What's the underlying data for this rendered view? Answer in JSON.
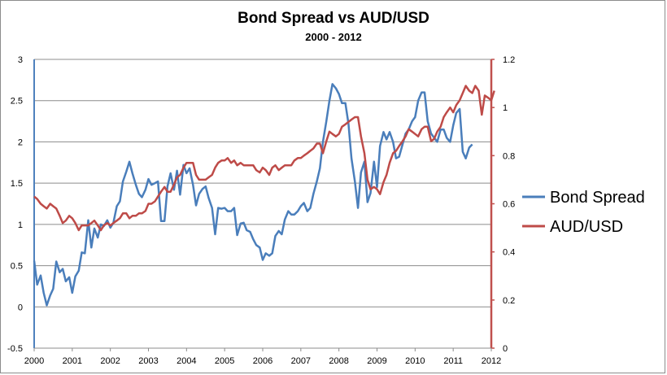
{
  "chart_data": {
    "type": "line",
    "title": "Bond Spread vs AUD/USD",
    "subtitle": "2000 - 2012",
    "xlabel": "",
    "ylabel": "",
    "x_tick_labels": [
      "2000",
      "2001",
      "2002",
      "2003",
      "2004",
      "2005",
      "2006",
      "2007",
      "2008",
      "2009",
      "2010",
      "2011",
      "2012"
    ],
    "xlim": [
      2000,
      2012
    ],
    "y_left": {
      "lim": [
        -0.5,
        3
      ],
      "ticks": [
        -0.5,
        0,
        0.5,
        1,
        1.5,
        2,
        2.5,
        3
      ],
      "tick_labels": [
        "-0.5",
        "0",
        "0.5",
        "1",
        "1.5",
        "2",
        "2.5",
        "3"
      ]
    },
    "y_right": {
      "lim": [
        0,
        1.2
      ],
      "ticks": [
        0,
        0.2,
        0.4,
        0.6,
        0.8,
        1,
        1.2
      ],
      "tick_labels": [
        "0",
        "0.2",
        "0.4",
        "0.6",
        "0.8",
        "1",
        "1.2"
      ]
    },
    "grid": true,
    "legend_position": "right",
    "series": [
      {
        "name": "Bond Spread",
        "axis": "left",
        "color": "#4a7ebb",
        "points": [
          [
            2000.0,
            0.56
          ],
          [
            2000.08,
            0.27
          ],
          [
            2000.17,
            0.38
          ],
          [
            2000.25,
            0.17
          ],
          [
            2000.33,
            0.02
          ],
          [
            2000.42,
            0.14
          ],
          [
            2000.5,
            0.22
          ],
          [
            2000.58,
            0.55
          ],
          [
            2000.67,
            0.42
          ],
          [
            2000.75,
            0.46
          ],
          [
            2000.83,
            0.31
          ],
          [
            2000.92,
            0.36
          ],
          [
            2001.0,
            0.17
          ],
          [
            2001.08,
            0.37
          ],
          [
            2001.17,
            0.44
          ],
          [
            2001.25,
            0.66
          ],
          [
            2001.33,
            0.65
          ],
          [
            2001.42,
            1.05
          ],
          [
            2001.5,
            0.72
          ],
          [
            2001.58,
            0.95
          ],
          [
            2001.67,
            0.84
          ],
          [
            2001.75,
            1.0
          ],
          [
            2001.83,
            0.98
          ],
          [
            2001.92,
            1.05
          ],
          [
            2002.0,
            0.96
          ],
          [
            2002.08,
            1.02
          ],
          [
            2002.17,
            1.22
          ],
          [
            2002.25,
            1.28
          ],
          [
            2002.33,
            1.52
          ],
          [
            2002.42,
            1.64
          ],
          [
            2002.5,
            1.76
          ],
          [
            2002.58,
            1.62
          ],
          [
            2002.67,
            1.48
          ],
          [
            2002.75,
            1.37
          ],
          [
            2002.83,
            1.33
          ],
          [
            2002.92,
            1.42
          ],
          [
            2003.0,
            1.55
          ],
          [
            2003.08,
            1.48
          ],
          [
            2003.17,
            1.5
          ],
          [
            2003.25,
            1.52
          ],
          [
            2003.33,
            1.04
          ],
          [
            2003.42,
            1.04
          ],
          [
            2003.5,
            1.46
          ],
          [
            2003.58,
            1.62
          ],
          [
            2003.67,
            1.42
          ],
          [
            2003.75,
            1.65
          ],
          [
            2003.83,
            1.36
          ],
          [
            2003.92,
            1.72
          ],
          [
            2004.0,
            1.62
          ],
          [
            2004.08,
            1.68
          ],
          [
            2004.17,
            1.48
          ],
          [
            2004.25,
            1.23
          ],
          [
            2004.33,
            1.37
          ],
          [
            2004.42,
            1.43
          ],
          [
            2004.5,
            1.46
          ],
          [
            2004.58,
            1.32
          ],
          [
            2004.67,
            1.2
          ],
          [
            2004.75,
            0.88
          ],
          [
            2004.83,
            1.2
          ],
          [
            2004.92,
            1.19
          ],
          [
            2005.0,
            1.2
          ],
          [
            2005.08,
            1.16
          ],
          [
            2005.17,
            1.16
          ],
          [
            2005.25,
            1.2
          ],
          [
            2005.33,
            0.87
          ],
          [
            2005.42,
            1.01
          ],
          [
            2005.5,
            1.02
          ],
          [
            2005.58,
            0.93
          ],
          [
            2005.67,
            0.91
          ],
          [
            2005.75,
            0.82
          ],
          [
            2005.83,
            0.75
          ],
          [
            2005.92,
            0.72
          ],
          [
            2006.0,
            0.57
          ],
          [
            2006.08,
            0.65
          ],
          [
            2006.17,
            0.62
          ],
          [
            2006.25,
            0.65
          ],
          [
            2006.33,
            0.86
          ],
          [
            2006.42,
            0.92
          ],
          [
            2006.5,
            0.88
          ],
          [
            2006.58,
            1.06
          ],
          [
            2006.67,
            1.16
          ],
          [
            2006.75,
            1.12
          ],
          [
            2006.83,
            1.12
          ],
          [
            2006.92,
            1.16
          ],
          [
            2007.0,
            1.22
          ],
          [
            2007.08,
            1.26
          ],
          [
            2007.17,
            1.16
          ],
          [
            2007.25,
            1.2
          ],
          [
            2007.33,
            1.37
          ],
          [
            2007.42,
            1.52
          ],
          [
            2007.5,
            1.68
          ],
          [
            2007.58,
            2.0
          ],
          [
            2007.67,
            2.25
          ],
          [
            2007.75,
            2.5
          ],
          [
            2007.83,
            2.7
          ],
          [
            2007.92,
            2.65
          ],
          [
            2008.0,
            2.58
          ],
          [
            2008.08,
            2.47
          ],
          [
            2008.17,
            2.47
          ],
          [
            2008.25,
            2.22
          ],
          [
            2008.33,
            1.8
          ],
          [
            2008.42,
            1.52
          ],
          [
            2008.5,
            1.2
          ],
          [
            2008.58,
            1.63
          ],
          [
            2008.67,
            1.76
          ],
          [
            2008.75,
            1.27
          ],
          [
            2008.83,
            1.38
          ],
          [
            2008.92,
            1.76
          ],
          [
            2009.0,
            1.45
          ],
          [
            2009.08,
            1.95
          ],
          [
            2009.17,
            2.12
          ],
          [
            2009.25,
            2.03
          ],
          [
            2009.33,
            2.12
          ],
          [
            2009.42,
            2.0
          ],
          [
            2009.5,
            1.8
          ],
          [
            2009.58,
            1.82
          ],
          [
            2009.67,
            1.97
          ],
          [
            2009.75,
            2.1
          ],
          [
            2009.83,
            2.15
          ],
          [
            2009.92,
            2.25
          ],
          [
            2010.0,
            2.3
          ],
          [
            2010.08,
            2.5
          ],
          [
            2010.17,
            2.6
          ],
          [
            2010.25,
            2.6
          ],
          [
            2010.33,
            2.25
          ],
          [
            2010.42,
            2.1
          ],
          [
            2010.5,
            2.05
          ],
          [
            2010.58,
            2.0
          ],
          [
            2010.67,
            2.15
          ],
          [
            2010.75,
            2.15
          ],
          [
            2010.83,
            2.05
          ],
          [
            2010.92,
            2.0
          ],
          [
            2011.0,
            2.2
          ],
          [
            2011.08,
            2.35
          ],
          [
            2011.17,
            2.4
          ],
          [
            2011.25,
            1.88
          ],
          [
            2011.33,
            1.8
          ],
          [
            2011.42,
            1.93
          ],
          [
            2011.5,
            1.97
          ]
        ]
      },
      {
        "name": "AUD/USD",
        "axis": "right",
        "color": "#be4b48",
        "points": [
          [
            2000.0,
            0.63
          ],
          [
            2000.08,
            0.62
          ],
          [
            2000.17,
            0.6
          ],
          [
            2000.25,
            0.59
          ],
          [
            2000.33,
            0.58
          ],
          [
            2000.42,
            0.6
          ],
          [
            2000.5,
            0.59
          ],
          [
            2000.58,
            0.58
          ],
          [
            2000.67,
            0.55
          ],
          [
            2000.75,
            0.52
          ],
          [
            2000.83,
            0.53
          ],
          [
            2000.92,
            0.55
          ],
          [
            2001.0,
            0.54
          ],
          [
            2001.08,
            0.52
          ],
          [
            2001.17,
            0.49
          ],
          [
            2001.25,
            0.51
          ],
          [
            2001.33,
            0.51
          ],
          [
            2001.42,
            0.51
          ],
          [
            2001.5,
            0.52
          ],
          [
            2001.58,
            0.53
          ],
          [
            2001.67,
            0.51
          ],
          [
            2001.75,
            0.49
          ],
          [
            2001.83,
            0.51
          ],
          [
            2001.92,
            0.52
          ],
          [
            2002.0,
            0.51
          ],
          [
            2002.08,
            0.52
          ],
          [
            2002.17,
            0.53
          ],
          [
            2002.25,
            0.54
          ],
          [
            2002.33,
            0.56
          ],
          [
            2002.42,
            0.56
          ],
          [
            2002.5,
            0.54
          ],
          [
            2002.58,
            0.55
          ],
          [
            2002.67,
            0.55
          ],
          [
            2002.75,
            0.56
          ],
          [
            2002.83,
            0.56
          ],
          [
            2002.92,
            0.57
          ],
          [
            2003.0,
            0.6
          ],
          [
            2003.08,
            0.6
          ],
          [
            2003.17,
            0.61
          ],
          [
            2003.25,
            0.63
          ],
          [
            2003.33,
            0.65
          ],
          [
            2003.42,
            0.67
          ],
          [
            2003.5,
            0.65
          ],
          [
            2003.58,
            0.65
          ],
          [
            2003.67,
            0.68
          ],
          [
            2003.75,
            0.71
          ],
          [
            2003.83,
            0.72
          ],
          [
            2003.92,
            0.75
          ],
          [
            2004.0,
            0.77
          ],
          [
            2004.08,
            0.77
          ],
          [
            2004.17,
            0.77
          ],
          [
            2004.25,
            0.72
          ],
          [
            2004.33,
            0.7
          ],
          [
            2004.42,
            0.7
          ],
          [
            2004.5,
            0.7
          ],
          [
            2004.58,
            0.71
          ],
          [
            2004.67,
            0.72
          ],
          [
            2004.75,
            0.75
          ],
          [
            2004.83,
            0.77
          ],
          [
            2004.92,
            0.78
          ],
          [
            2005.0,
            0.78
          ],
          [
            2005.08,
            0.79
          ],
          [
            2005.17,
            0.77
          ],
          [
            2005.25,
            0.78
          ],
          [
            2005.33,
            0.76
          ],
          [
            2005.42,
            0.77
          ],
          [
            2005.5,
            0.76
          ],
          [
            2005.58,
            0.76
          ],
          [
            2005.67,
            0.76
          ],
          [
            2005.75,
            0.76
          ],
          [
            2005.83,
            0.74
          ],
          [
            2005.92,
            0.73
          ],
          [
            2006.0,
            0.75
          ],
          [
            2006.08,
            0.74
          ],
          [
            2006.17,
            0.72
          ],
          [
            2006.25,
            0.75
          ],
          [
            2006.33,
            0.76
          ],
          [
            2006.42,
            0.74
          ],
          [
            2006.5,
            0.75
          ],
          [
            2006.58,
            0.76
          ],
          [
            2006.67,
            0.76
          ],
          [
            2006.75,
            0.76
          ],
          [
            2006.83,
            0.78
          ],
          [
            2006.92,
            0.79
          ],
          [
            2007.0,
            0.79
          ],
          [
            2007.08,
            0.8
          ],
          [
            2007.17,
            0.81
          ],
          [
            2007.25,
            0.82
          ],
          [
            2007.33,
            0.83
          ],
          [
            2007.42,
            0.85
          ],
          [
            2007.5,
            0.85
          ],
          [
            2007.58,
            0.81
          ],
          [
            2007.67,
            0.86
          ],
          [
            2007.75,
            0.9
          ],
          [
            2007.83,
            0.89
          ],
          [
            2007.92,
            0.88
          ],
          [
            2008.0,
            0.89
          ],
          [
            2008.08,
            0.92
          ],
          [
            2008.17,
            0.93
          ],
          [
            2008.25,
            0.94
          ],
          [
            2008.33,
            0.95
          ],
          [
            2008.42,
            0.96
          ],
          [
            2008.5,
            0.96
          ],
          [
            2008.58,
            0.88
          ],
          [
            2008.67,
            0.81
          ],
          [
            2008.75,
            0.7
          ],
          [
            2008.83,
            0.66
          ],
          [
            2008.92,
            0.67
          ],
          [
            2009.0,
            0.66
          ],
          [
            2009.08,
            0.64
          ],
          [
            2009.17,
            0.69
          ],
          [
            2009.25,
            0.72
          ],
          [
            2009.33,
            0.77
          ],
          [
            2009.42,
            0.81
          ],
          [
            2009.5,
            0.82
          ],
          [
            2009.58,
            0.84
          ],
          [
            2009.67,
            0.86
          ],
          [
            2009.75,
            0.88
          ],
          [
            2009.83,
            0.91
          ],
          [
            2009.92,
            0.9
          ],
          [
            2010.0,
            0.89
          ],
          [
            2010.08,
            0.88
          ],
          [
            2010.17,
            0.91
          ],
          [
            2010.25,
            0.92
          ],
          [
            2010.33,
            0.92
          ],
          [
            2010.42,
            0.86
          ],
          [
            2010.5,
            0.87
          ],
          [
            2010.58,
            0.9
          ],
          [
            2010.67,
            0.92
          ],
          [
            2010.75,
            0.96
          ],
          [
            2010.83,
            0.98
          ],
          [
            2010.92,
            1.0
          ],
          [
            2011.0,
            0.98
          ],
          [
            2011.08,
            1.01
          ],
          [
            2011.17,
            1.03
          ],
          [
            2011.25,
            1.06
          ],
          [
            2011.33,
            1.09
          ],
          [
            2011.42,
            1.07
          ],
          [
            2011.5,
            1.06
          ],
          [
            2011.58,
            1.09
          ],
          [
            2011.67,
            1.07
          ],
          [
            2011.75,
            0.97
          ],
          [
            2011.83,
            1.05
          ],
          [
            2011.92,
            1.04
          ],
          [
            2012.0,
            1.03
          ],
          [
            2012.08,
            1.07
          ]
        ]
      }
    ]
  }
}
